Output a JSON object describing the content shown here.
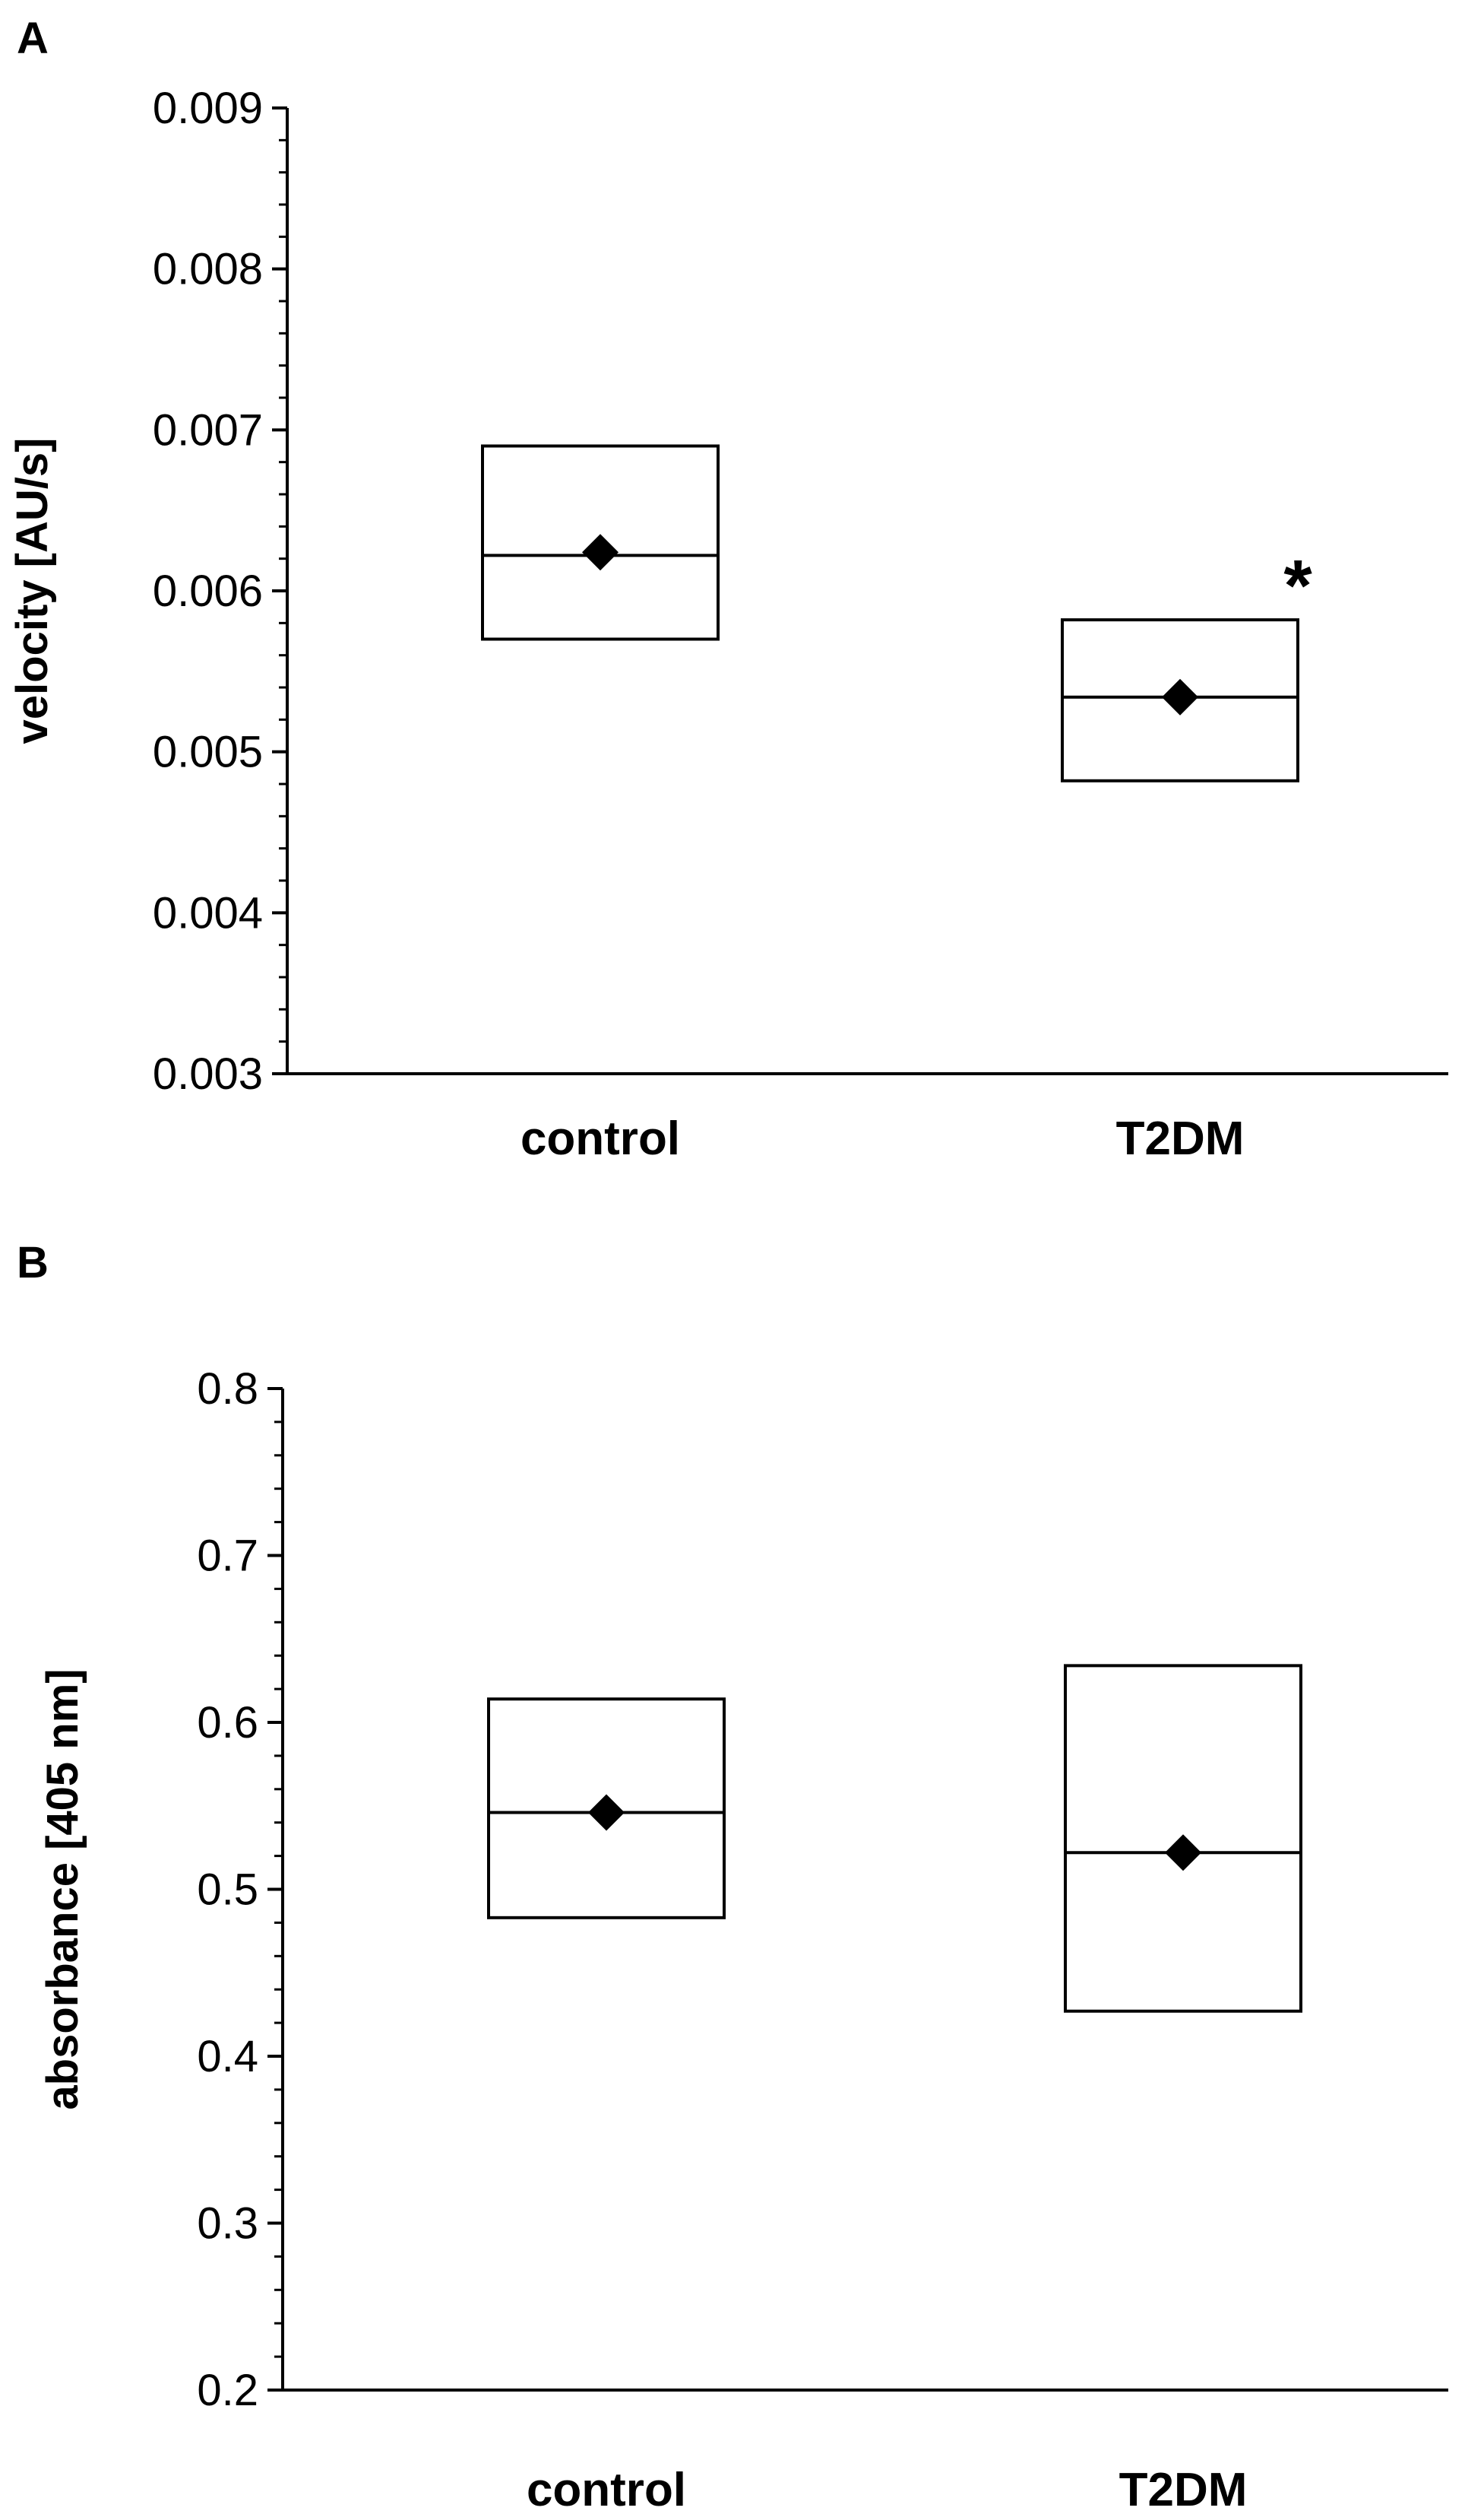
{
  "chart_data": [
    {
      "type": "box",
      "panel_label": "A",
      "ylabel": "velocity [AU/s]",
      "xlabel": "",
      "ylim": [
        0.003,
        0.009
      ],
      "yticks": [
        "0.003",
        "0.004",
        "0.005",
        "0.006",
        "0.007",
        "0.008",
        "0.009"
      ],
      "ytick_values": [
        0.003,
        0.004,
        0.005,
        0.006,
        0.007,
        0.008,
        0.009
      ],
      "minor_ticks_per_interval": 5,
      "categories": [
        "control",
        "T2DM"
      ],
      "boxes": [
        {
          "category": "control",
          "lower": 0.0057,
          "upper": 0.0069,
          "median": 0.00622,
          "mean": 0.00624
        },
        {
          "category": "T2DM",
          "lower": 0.00482,
          "upper": 0.00582,
          "median": 0.00534,
          "mean": 0.00534,
          "annotation": "*"
        }
      ]
    },
    {
      "type": "box",
      "panel_label": "B",
      "ylabel": "absorbance [405 nm]",
      "xlabel": "",
      "ylim": [
        0.2,
        0.8
      ],
      "yticks": [
        "0.2",
        "0.3",
        "0.4",
        "0.5",
        "0.6",
        "0.7",
        "0.8"
      ],
      "ytick_values": [
        0.2,
        0.3,
        0.4,
        0.5,
        0.6,
        0.7,
        0.8
      ],
      "minor_ticks_per_interval": 5,
      "categories": [
        "control",
        "T2DM"
      ],
      "boxes": [
        {
          "category": "control",
          "lower": 0.483,
          "upper": 0.614,
          "median": 0.546,
          "mean": 0.546
        },
        {
          "category": "T2DM",
          "lower": 0.427,
          "upper": 0.634,
          "median": 0.522,
          "mean": 0.522
        }
      ]
    }
  ]
}
